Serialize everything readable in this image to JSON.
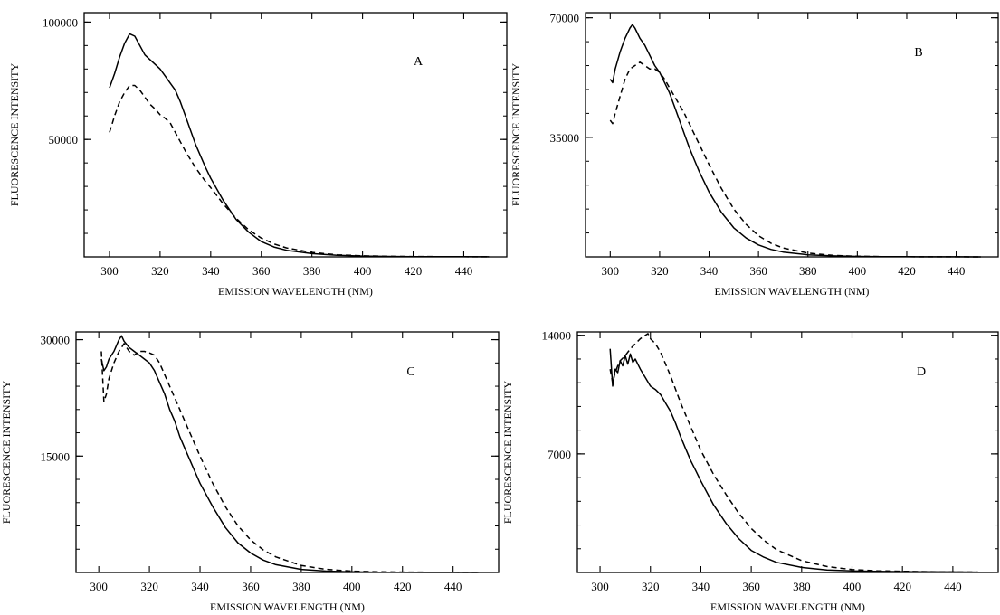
{
  "chart_data": [
    {
      "type": "line",
      "panel_label": "A",
      "xlabel": "EMISSION WAVELENGTH (NM)",
      "ylabel": "FLUORESCENCE INTENSITY",
      "xlim": [
        290,
        457
      ],
      "ylim": [
        0,
        104000
      ],
      "xticks": [
        300,
        320,
        340,
        360,
        380,
        400,
        420,
        440
      ],
      "yticks": [
        50000,
        100000
      ],
      "series": [
        {
          "style": "solid",
          "x": [
            300,
            302,
            304,
            306,
            308,
            310,
            312,
            314,
            316,
            318,
            320,
            322,
            324,
            326,
            328,
            330,
            332,
            334,
            336,
            338,
            340,
            345,
            350,
            355,
            360,
            365,
            370,
            380,
            390,
            400,
            410,
            420,
            430,
            440,
            450
          ],
          "y": [
            72000,
            78000,
            85000,
            91000,
            95000,
            94000,
            90000,
            86000,
            84000,
            82000,
            80000,
            77000,
            74000,
            71000,
            66000,
            60000,
            54000,
            48000,
            43000,
            38000,
            33500,
            24000,
            16000,
            10500,
            6500,
            4200,
            2800,
            1400,
            700,
            350,
            200,
            120,
            80,
            60,
            50
          ]
        },
        {
          "style": "dashed",
          "x": [
            300,
            302,
            304,
            306,
            308,
            310,
            312,
            314,
            316,
            318,
            320,
            322,
            324,
            326,
            328,
            330,
            332,
            334,
            336,
            338,
            340,
            345,
            350,
            355,
            360,
            365,
            370,
            380,
            390,
            400,
            410,
            420,
            430,
            440,
            450
          ],
          "y": [
            53000,
            60000,
            66000,
            70000,
            73000,
            73000,
            71000,
            68000,
            65000,
            63000,
            60500,
            59000,
            57000,
            53000,
            49000,
            45000,
            41500,
            38000,
            35000,
            32000,
            29500,
            22500,
            16500,
            11500,
            8000,
            5500,
            3800,
            1900,
            900,
            450,
            250,
            150,
            100,
            70,
            50
          ]
        }
      ]
    },
    {
      "type": "line",
      "panel_label": "B",
      "xlabel": "EMISSION WAVELENGTH (NM)",
      "ylabel": "FLUORESCENCE INTENSITY",
      "xlim": [
        290,
        457
      ],
      "ylim": [
        0,
        71500
      ],
      "xticks": [
        300,
        320,
        340,
        360,
        380,
        400,
        420,
        440
      ],
      "yticks": [
        35000,
        70000
      ],
      "series": [
        {
          "style": "solid",
          "x": [
            300,
            301,
            302,
            304,
            306,
            308,
            309,
            310,
            312,
            314,
            316,
            318,
            320,
            322,
            324,
            326,
            328,
            330,
            332,
            334,
            336,
            338,
            340,
            345,
            350,
            355,
            360,
            365,
            370,
            380,
            390,
            400,
            410,
            420,
            430,
            440,
            450
          ],
          "y": [
            52000,
            51000,
            55000,
            60000,
            64000,
            67000,
            68000,
            67000,
            64000,
            62000,
            59000,
            56000,
            54000,
            51000,
            48000,
            44000,
            40000,
            36000,
            32000,
            28500,
            25000,
            22000,
            19000,
            13000,
            8500,
            5500,
            3500,
            2200,
            1400,
            600,
            280,
            130,
            70,
            40,
            25,
            15,
            10
          ]
        },
        {
          "style": "dashed",
          "x": [
            300,
            301,
            302,
            304,
            306,
            308,
            310,
            312,
            314,
            316,
            318,
            320,
            322,
            324,
            326,
            328,
            330,
            332,
            334,
            336,
            338,
            340,
            345,
            350,
            355,
            360,
            365,
            370,
            380,
            390,
            400,
            410,
            420,
            430,
            440,
            450
          ],
          "y": [
            40000,
            39000,
            42000,
            47000,
            52000,
            55000,
            56000,
            57000,
            56000,
            55000,
            55000,
            54000,
            52000,
            49500,
            47000,
            44500,
            42000,
            39000,
            36000,
            33000,
            30000,
            27000,
            20000,
            14000,
            9500,
            6200,
            4000,
            2600,
            1100,
            450,
            180,
            80,
            40,
            25,
            15,
            10
          ]
        }
      ]
    },
    {
      "type": "line",
      "panel_label": "C",
      "xlabel": "EMISSION WAVELENGTH (NM)",
      "ylabel": "FLUORESCENCE INTENSITY",
      "xlim": [
        291,
        458
      ],
      "ylim": [
        0,
        31000
      ],
      "xticks": [
        300,
        320,
        340,
        360,
        380,
        400,
        420,
        440
      ],
      "yticks": [
        15000,
        30000
      ],
      "series": [
        {
          "style": "solid",
          "x": [
            301,
            302,
            303,
            304,
            306,
            308,
            309,
            310,
            312,
            314,
            316,
            318,
            320,
            322,
            324,
            326,
            328,
            330,
            332,
            334,
            336,
            338,
            340,
            345,
            350,
            355,
            360,
            365,
            370,
            380,
            390,
            400,
            410,
            420,
            430,
            440,
            450
          ],
          "y": [
            27500,
            26000,
            26500,
            27500,
            28500,
            30000,
            30500,
            29800,
            29000,
            28500,
            28000,
            27500,
            27000,
            26000,
            24500,
            23000,
            21000,
            19500,
            17500,
            16000,
            14500,
            13000,
            11500,
            8500,
            5800,
            3800,
            2500,
            1600,
            1000,
            400,
            180,
            80,
            40,
            20,
            15,
            10,
            8
          ]
        },
        {
          "style": "dashed",
          "x": [
            301,
            302,
            303,
            304,
            306,
            308,
            310,
            312,
            314,
            316,
            318,
            320,
            322,
            324,
            326,
            328,
            330,
            332,
            334,
            336,
            338,
            340,
            345,
            350,
            355,
            360,
            365,
            370,
            380,
            390,
            400,
            410,
            420,
            430,
            440,
            450
          ],
          "y": [
            28500,
            22000,
            23000,
            25000,
            27000,
            28500,
            29500,
            28500,
            28000,
            28500,
            28500,
            28300,
            28000,
            27000,
            25500,
            24000,
            22500,
            21000,
            19500,
            18000,
            16500,
            15000,
            11500,
            8500,
            6000,
            4200,
            2900,
            2000,
            900,
            400,
            180,
            90,
            50,
            30,
            20,
            15
          ]
        }
      ]
    },
    {
      "type": "line",
      "panel_label": "D",
      "xlabel": "EMISSION WAVELENGTH (NM)",
      "ylabel": "FLUORESCENCE INTENSITY",
      "xlim": [
        291,
        458
      ],
      "ylim": [
        0,
        14200
      ],
      "xticks": [
        300,
        320,
        340,
        360,
        380,
        400,
        420,
        440
      ],
      "yticks": [
        7000,
        14000
      ],
      "series": [
        {
          "style": "solid",
          "x": [
            304,
            305,
            306,
            307,
            308,
            309,
            310,
            311,
            312,
            313,
            314,
            316,
            318,
            320,
            322,
            324,
            326,
            328,
            330,
            332,
            334,
            336,
            338,
            340,
            345,
            350,
            355,
            360,
            365,
            370,
            380,
            390,
            400,
            410,
            420,
            430,
            440,
            450
          ],
          "y": [
            13200,
            11000,
            12000,
            11800,
            12500,
            12200,
            12800,
            12300,
            12900,
            12400,
            12600,
            12000,
            11500,
            11000,
            10800,
            10500,
            10000,
            9500,
            8800,
            8000,
            7300,
            6600,
            6000,
            5400,
            4000,
            2900,
            2000,
            1300,
            900,
            600,
            300,
            150,
            90,
            70,
            50,
            40,
            30,
            20
          ]
        },
        {
          "style": "dashed",
          "x": [
            304,
            305,
            306,
            307,
            308,
            310,
            312,
            314,
            316,
            318,
            319,
            320,
            322,
            324,
            326,
            328,
            330,
            332,
            334,
            336,
            338,
            340,
            345,
            350,
            355,
            360,
            365,
            370,
            380,
            390,
            400,
            410,
            420,
            430,
            440,
            450
          ],
          "y": [
            12000,
            11200,
            11800,
            12200,
            12500,
            12800,
            13200,
            13500,
            13800,
            14000,
            14100,
            13800,
            13500,
            13000,
            12300,
            11600,
            10800,
            10000,
            9300,
            8600,
            7900,
            7200,
            5800,
            4600,
            3500,
            2600,
            1900,
            1350,
            700,
            350,
            170,
            100,
            70,
            50,
            30,
            20
          ]
        }
      ]
    }
  ]
}
